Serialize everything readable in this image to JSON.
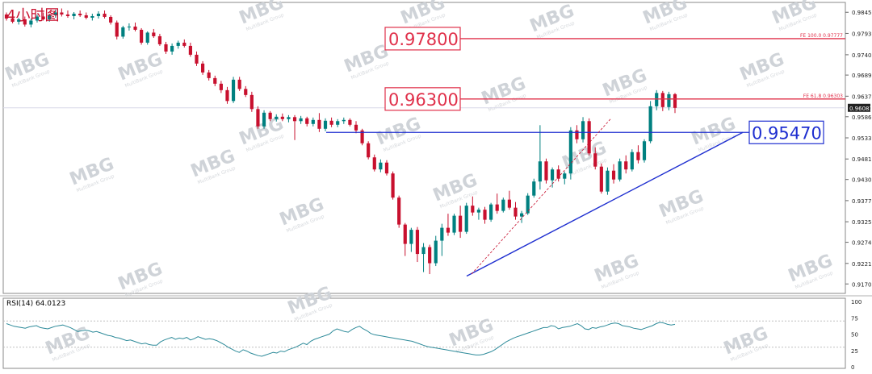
{
  "chart_data": [
    {
      "type": "candlestick",
      "title": "4小时图",
      "ylim": [
        0.9147,
        0.987
      ],
      "price_ticks": [
        0.98455,
        0.9793,
        0.974,
        0.96895,
        0.9637,
        0.9586,
        0.95335,
        0.9481,
        0.943,
        0.93775,
        0.9325,
        0.9274,
        0.92215,
        0.91705
      ],
      "current_price": "0.96081",
      "candles": [
        [
          0.984,
          0.9845,
          0.9825,
          0.983
        ],
        [
          0.983,
          0.9838,
          0.9818,
          0.9822
        ],
        [
          0.9822,
          0.9832,
          0.9815,
          0.9828
        ],
        [
          0.9828,
          0.9835,
          0.981,
          0.9815
        ],
        [
          0.9815,
          0.983,
          0.9808,
          0.9825
        ],
        [
          0.9825,
          0.984,
          0.982,
          0.9835
        ],
        [
          0.9835,
          0.9845,
          0.9825,
          0.9828
        ],
        [
          0.9828,
          0.9842,
          0.9822,
          0.9838
        ],
        [
          0.9838,
          0.9852,
          0.9832,
          0.9845
        ],
        [
          0.9845,
          0.9855,
          0.9835,
          0.984
        ],
        [
          0.984,
          0.985,
          0.9832,
          0.9836
        ],
        [
          0.9836,
          0.9846,
          0.9828,
          0.9842
        ],
        [
          0.9842,
          0.985,
          0.9834,
          0.9838
        ],
        [
          0.9838,
          0.9845,
          0.9828,
          0.9832
        ],
        [
          0.9832,
          0.9842,
          0.9825,
          0.9836
        ],
        [
          0.9836,
          0.9848,
          0.983,
          0.9842
        ],
        [
          0.9842,
          0.985,
          0.983,
          0.9834
        ],
        [
          0.9834,
          0.9838,
          0.9815,
          0.982
        ],
        [
          0.982,
          0.9825,
          0.9778,
          0.9785
        ],
        [
          0.9785,
          0.9812,
          0.978,
          0.9808
        ],
        [
          0.9808,
          0.9818,
          0.98,
          0.981
        ],
        [
          0.981,
          0.982,
          0.9798,
          0.9802
        ],
        [
          0.9802,
          0.9806,
          0.9765,
          0.977
        ],
        [
          0.977,
          0.9798,
          0.9765,
          0.9795
        ],
        [
          0.9795,
          0.9804,
          0.9782,
          0.9786
        ],
        [
          0.9786,
          0.9792,
          0.9762,
          0.9766
        ],
        [
          0.9766,
          0.9772,
          0.9742,
          0.9748
        ],
        [
          0.9748,
          0.9768,
          0.974,
          0.9762
        ],
        [
          0.9762,
          0.9775,
          0.9755,
          0.977
        ],
        [
          0.977,
          0.9778,
          0.9758,
          0.9762
        ],
        [
          0.9762,
          0.977,
          0.9735,
          0.974
        ],
        [
          0.974,
          0.9748,
          0.9712,
          0.9718
        ],
        [
          0.9718,
          0.9724,
          0.969,
          0.9696
        ],
        [
          0.9696,
          0.9702,
          0.9676,
          0.9682
        ],
        [
          0.9682,
          0.9688,
          0.9662,
          0.9668
        ],
        [
          0.9668,
          0.9675,
          0.9645,
          0.9652
        ],
        [
          0.9652,
          0.966,
          0.9618,
          0.9625
        ],
        [
          0.9625,
          0.9685,
          0.962,
          0.9678
        ],
        [
          0.9678,
          0.9685,
          0.965,
          0.9655
        ],
        [
          0.9655,
          0.9662,
          0.9635,
          0.964
        ],
        [
          0.964,
          0.9648,
          0.9598,
          0.9605
        ],
        [
          0.9605,
          0.9612,
          0.9556,
          0.9562
        ],
        [
          0.9562,
          0.9602,
          0.9556,
          0.9596
        ],
        [
          0.9596,
          0.96,
          0.9575,
          0.958
        ],
        [
          0.958,
          0.9592,
          0.9574,
          0.9586
        ],
        [
          0.9586,
          0.9594,
          0.9575,
          0.958
        ],
        [
          0.958,
          0.959,
          0.9572,
          0.9585
        ],
        [
          0.9585,
          0.959,
          0.9528,
          0.9575
        ],
        [
          0.9575,
          0.9588,
          0.9568,
          0.9582
        ],
        [
          0.9582,
          0.9586,
          0.9562,
          0.9568
        ],
        [
          0.9568,
          0.9584,
          0.9562,
          0.9578
        ],
        [
          0.9578,
          0.9595,
          0.9548,
          0.9556
        ],
        [
          0.9556,
          0.9582,
          0.955,
          0.9576
        ],
        [
          0.9576,
          0.9584,
          0.956,
          0.9566
        ],
        [
          0.9566,
          0.958,
          0.956,
          0.9575
        ],
        [
          0.9575,
          0.9584,
          0.9568,
          0.9578
        ],
        [
          0.9578,
          0.9582,
          0.9562,
          0.9566
        ],
        [
          0.9566,
          0.9575,
          0.9545,
          0.9552
        ],
        [
          0.9552,
          0.9556,
          0.9515,
          0.952
        ],
        [
          0.952,
          0.9525,
          0.948,
          0.9485
        ],
        [
          0.9485,
          0.9492,
          0.945,
          0.9455
        ],
        [
          0.9455,
          0.948,
          0.9448,
          0.9472
        ],
        [
          0.9472,
          0.9478,
          0.944,
          0.9445
        ],
        [
          0.9445,
          0.945,
          0.938,
          0.9385
        ],
        [
          0.9385,
          0.939,
          0.931,
          0.9318
        ],
        [
          0.9318,
          0.9322,
          0.924,
          0.927
        ],
        [
          0.927,
          0.931,
          0.925,
          0.9305
        ],
        [
          0.9305,
          0.9312,
          0.9225,
          0.9245
        ],
        [
          0.9245,
          0.9272,
          0.92,
          0.9262
        ],
        [
          0.9262,
          0.9268,
          0.9195,
          0.9222
        ],
        [
          0.9222,
          0.929,
          0.9215,
          0.9278
        ],
        [
          0.9278,
          0.932,
          0.924,
          0.931
        ],
        [
          0.931,
          0.9345,
          0.929,
          0.9298
        ],
        [
          0.9298,
          0.9345,
          0.9292,
          0.934
        ],
        [
          0.934,
          0.9365,
          0.9285,
          0.93
        ],
        [
          0.93,
          0.9372,
          0.9295,
          0.9365
        ],
        [
          0.9365,
          0.9388,
          0.934,
          0.9348
        ],
        [
          0.9348,
          0.936,
          0.933,
          0.9355
        ],
        [
          0.9355,
          0.9362,
          0.932,
          0.933
        ],
        [
          0.933,
          0.9372,
          0.9325,
          0.9368
        ],
        [
          0.9368,
          0.9395,
          0.9345,
          0.9352
        ],
        [
          0.9352,
          0.9385,
          0.9348,
          0.938
        ],
        [
          0.938,
          0.9402,
          0.9355,
          0.936
        ],
        [
          0.936,
          0.9374,
          0.933,
          0.9338
        ],
        [
          0.9338,
          0.9352,
          0.9322,
          0.9346
        ],
        [
          0.9346,
          0.9396,
          0.9342,
          0.939
        ],
        [
          0.939,
          0.9432,
          0.9385,
          0.9425
        ],
        [
          0.9425,
          0.9565,
          0.9405,
          0.9475
        ],
        [
          0.9475,
          0.9482,
          0.942,
          0.9428
        ],
        [
          0.9428,
          0.946,
          0.941,
          0.9455
        ],
        [
          0.9455,
          0.9465,
          0.9425,
          0.9432
        ],
        [
          0.9432,
          0.945,
          0.9418,
          0.9445
        ],
        [
          0.9445,
          0.956,
          0.943,
          0.9552
        ],
        [
          0.9552,
          0.9565,
          0.952,
          0.953
        ],
        [
          0.953,
          0.9585,
          0.9522,
          0.9575
        ],
        [
          0.9575,
          0.9582,
          0.949,
          0.9495
        ],
        [
          0.9495,
          0.951,
          0.9455,
          0.9462
        ],
        [
          0.9462,
          0.947,
          0.9395,
          0.94
        ],
        [
          0.94,
          0.946,
          0.9392,
          0.9452
        ],
        [
          0.9452,
          0.9468,
          0.942,
          0.943
        ],
        [
          0.943,
          0.9482,
          0.9425,
          0.9475
        ],
        [
          0.9475,
          0.949,
          0.9445,
          0.9455
        ],
        [
          0.9455,
          0.9505,
          0.945,
          0.9498
        ],
        [
          0.9498,
          0.9515,
          0.947,
          0.9478
        ],
        [
          0.9478,
          0.953,
          0.9472,
          0.9525
        ],
        [
          0.9525,
          0.9625,
          0.952,
          0.9612
        ],
        [
          0.9612,
          0.9652,
          0.9602,
          0.9645
        ],
        [
          0.9645,
          0.965,
          0.96,
          0.961
        ],
        [
          0.961,
          0.9648,
          0.9602,
          0.9642
        ],
        [
          0.9642,
          0.9645,
          0.9595,
          0.9608
        ]
      ],
      "levels": [
        {
          "value": 0.978,
          "label": "0.97800",
          "fib_label": "FE 100.0  0.97777",
          "color": "#e0304a"
        },
        {
          "value": 0.963,
          "label": "0.96300",
          "fib_label": "FE 61.8  0.96303",
          "color": "#e0304a"
        },
        {
          "value": 0.9547,
          "label": "0.95470",
          "color": "#1f2fd0"
        }
      ],
      "trendline": {
        "from": [
          0.919
        ],
        "to": [
          0.9547
        ],
        "color": "#1f2fd0"
      },
      "colors": {
        "bull": "#008080",
        "bear": "#c8102e"
      }
    },
    {
      "type": "line",
      "title": "RSI(14) 64.0123",
      "ylim": [
        0,
        100
      ],
      "yticks": [
        100,
        75,
        50,
        25,
        0
      ],
      "levels": [
        30,
        70
      ],
      "color": "#2e8b9a",
      "values": [
        66,
        64,
        62,
        61,
        60,
        59,
        61,
        62,
        63,
        60,
        59,
        58,
        60,
        62,
        63,
        64,
        62,
        60,
        57,
        54,
        55,
        56,
        55,
        53,
        54,
        52,
        50,
        48,
        47,
        45,
        44,
        42,
        40,
        41,
        39,
        37,
        35,
        36,
        34,
        33,
        33,
        38,
        41,
        43,
        45,
        42,
        44,
        43,
        45,
        41,
        43,
        46,
        44,
        42,
        43,
        42,
        40,
        37,
        34,
        30,
        27,
        24,
        22,
        26,
        24,
        21,
        19,
        17,
        16,
        18,
        20,
        22,
        21,
        24,
        23,
        26,
        28,
        30,
        33,
        36,
        34,
        39,
        42,
        44,
        46,
        48,
        50,
        55,
        58,
        56,
        54,
        53,
        57,
        60,
        62,
        58,
        55,
        51,
        49,
        48,
        47,
        46,
        45,
        44,
        43,
        42,
        41,
        40,
        39,
        37,
        35,
        33,
        31,
        30,
        29,
        28,
        27,
        26,
        25,
        24,
        23,
        22,
        21,
        20,
        19,
        18,
        18,
        19,
        21,
        23,
        26,
        30,
        34,
        38,
        41,
        44,
        46,
        48,
        50,
        52,
        54,
        56,
        58,
        60,
        60,
        63,
        62,
        58,
        60,
        61,
        62,
        64,
        66,
        63,
        58,
        57,
        60,
        59,
        61,
        62,
        64,
        66,
        67,
        66,
        63,
        62,
        61,
        59,
        58,
        57,
        59,
        61,
        63,
        66,
        68,
        67,
        65,
        64,
        65
      ],
      "value_label": "64.0123"
    }
  ],
  "watermark": {
    "brand": "MBG",
    "sub": "MultiBank Group"
  }
}
